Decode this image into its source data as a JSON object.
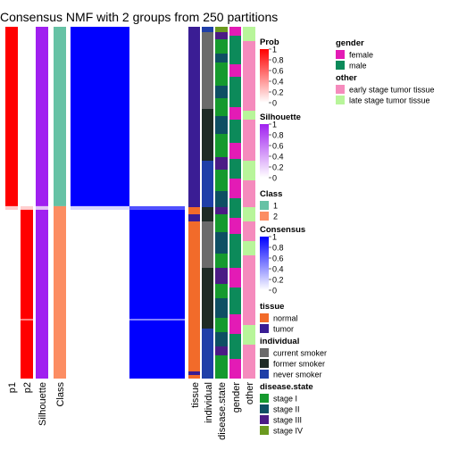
{
  "chart_data": {
    "type": "heatmap",
    "title": "Consensus NMF with 2 groups from 250 partitions",
    "annotation_columns": [
      "p1",
      "p2",
      "Silhouette",
      "Class"
    ],
    "meta_columns": [
      "tissue",
      "individual",
      "disease.state",
      "gender",
      "other"
    ],
    "class_split": {
      "class1_fraction": 0.51,
      "class2_fraction": 0.49
    },
    "prob_scale": {
      "title": "Prob",
      "ticks": [
        "1",
        "0.8",
        "0.6",
        "0.4",
        "0.2",
        "0"
      ],
      "colors": [
        "#ff0000",
        "#ffffff"
      ]
    },
    "silhouette_scale": {
      "title": "Silhouette",
      "ticks": [
        "1",
        "0.8",
        "0.6",
        "0.4",
        "0.2",
        "0"
      ],
      "colors": [
        "#a020f0",
        "#ffffff"
      ]
    },
    "class_legend": {
      "title": "Class",
      "items": [
        {
          "label": "1",
          "color": "#66c2a5"
        },
        {
          "label": "2",
          "color": "#fc8d62"
        }
      ]
    },
    "consensus_scale": {
      "title": "Consensus",
      "ticks": [
        "1",
        "0.8",
        "0.6",
        "0.4",
        "0.2",
        "0"
      ],
      "colors": [
        "#0000ff",
        "#ffffff"
      ]
    },
    "tissue_legend": {
      "title": "tissue",
      "items": [
        {
          "label": "normal",
          "color": "#f26b2a"
        },
        {
          "label": "tumor",
          "color": "#3a1d94"
        }
      ]
    },
    "individual_legend": {
      "title": "individual",
      "items": [
        {
          "label": "current smoker",
          "color": "#6b6b6b"
        },
        {
          "label": "former smoker",
          "color": "#1e2b26"
        },
        {
          "label": "never smoker",
          "color": "#1f3fa8"
        }
      ]
    },
    "disease_legend": {
      "title": "disease.state",
      "items": [
        {
          "label": "stage I",
          "color": "#159a2e"
        },
        {
          "label": "stage II",
          "color": "#0e4f63"
        },
        {
          "label": "stage III",
          "color": "#4b1b85"
        },
        {
          "label": "stage IV",
          "color": "#6b9a1f"
        }
      ]
    },
    "gender_legend": {
      "title": "gender",
      "items": [
        {
          "label": "female",
          "color": "#e31bb5"
        },
        {
          "label": "male",
          "color": "#0c8a5a"
        }
      ]
    },
    "other_legend": {
      "title": "other",
      "items": [
        {
          "label": "early stage tumor tissue",
          "color": "#f58bbd"
        },
        {
          "label": "late stage tumor tissue",
          "color": "#b8f59a"
        }
      ]
    }
  }
}
